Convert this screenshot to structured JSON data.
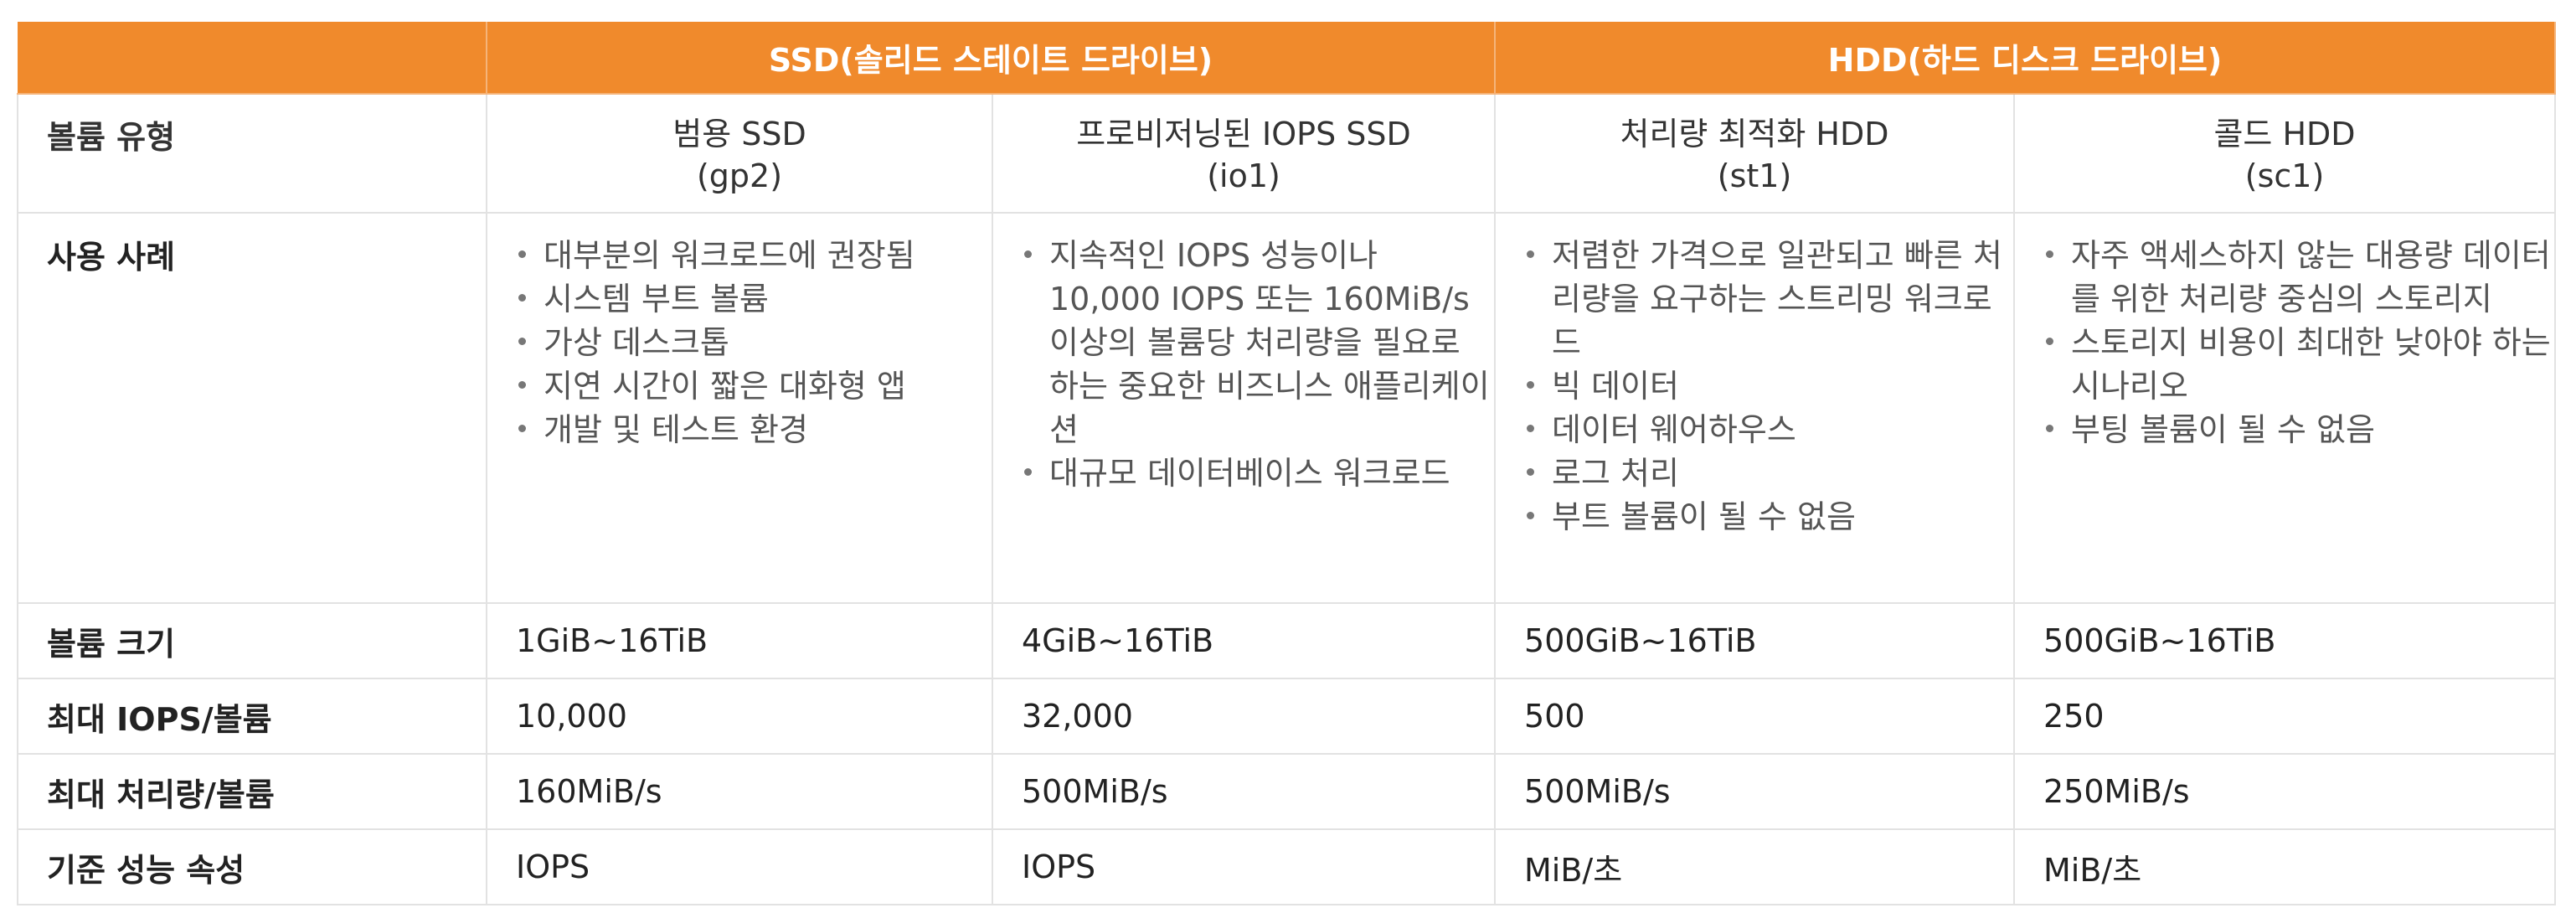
{
  "header": {
    "blank": "",
    "ssd_group": "SSD(솔리드 스테이트 드라이브)",
    "hdd_group": "HDD(하드 디스크 드라이브)"
  },
  "rows": {
    "volume_type": {
      "label": "볼륨 유형",
      "cols": [
        {
          "name": "범용 SSD",
          "code": "(gp2)"
        },
        {
          "name": "프로비저닝된 IOPS SSD",
          "code": "(io1)"
        },
        {
          "name": "처리량 최적화 HDD",
          "code": "(st1)"
        },
        {
          "name": "콜드 HDD",
          "code": "(sc1)"
        }
      ]
    },
    "use_cases": {
      "label": "사용 사례",
      "cols": [
        [
          "대부분의 워크로드에 권장됨",
          "시스템 부트 볼륨",
          "가상 데스크톱",
          "지연 시간이 짧은 대화형 앱",
          "개발 및 테스트 환경"
        ],
        [
          "지속적인 IOPS 성능이나 10,000 IOPS 또는 160MiB/s 이상의 볼륨당 처리량을 필요로 하는 중요한 비즈니스 애플리케이션",
          "대규모 데이터베이스 워크로드"
        ],
        [
          "저렴한 가격으로 일관되고 빠른 처리량을 요구하는 스트리밍 워크로드",
          "빅 데이터",
          "데이터 웨어하우스",
          "로그 처리",
          "부트 볼륨이 될 수 없음"
        ],
        [
          "자주 액세스하지 않는 대용량 데이터를 위한 처리량 중심의 스토리지",
          "스토리지 비용이 최대한 낮아야 하는 시나리오",
          "부팅 볼륨이 될 수 없음"
        ]
      ]
    },
    "volume_size": {
      "label": "볼륨 크기",
      "cols": [
        "1GiB~16TiB",
        "4GiB~16TiB",
        "500GiB~16TiB",
        "500GiB~16TiB"
      ]
    },
    "max_iops": {
      "label": "최대 IOPS/볼륨",
      "cols": [
        "10,000",
        "32,000",
        "500",
        "250"
      ]
    },
    "max_throughput": {
      "label": "최대 처리량/볼륨",
      "cols": [
        "160MiB/s",
        "500MiB/s",
        "500MiB/s",
        "250MiB/s"
      ]
    },
    "perf_attr": {
      "label": "기준 성능 속성",
      "cols": [
        "IOPS",
        "IOPS",
        "MiB/초",
        "MiB/초"
      ]
    }
  },
  "colors": {
    "header_band": "#f08a2c",
    "grid": "#e2e2e2"
  }
}
